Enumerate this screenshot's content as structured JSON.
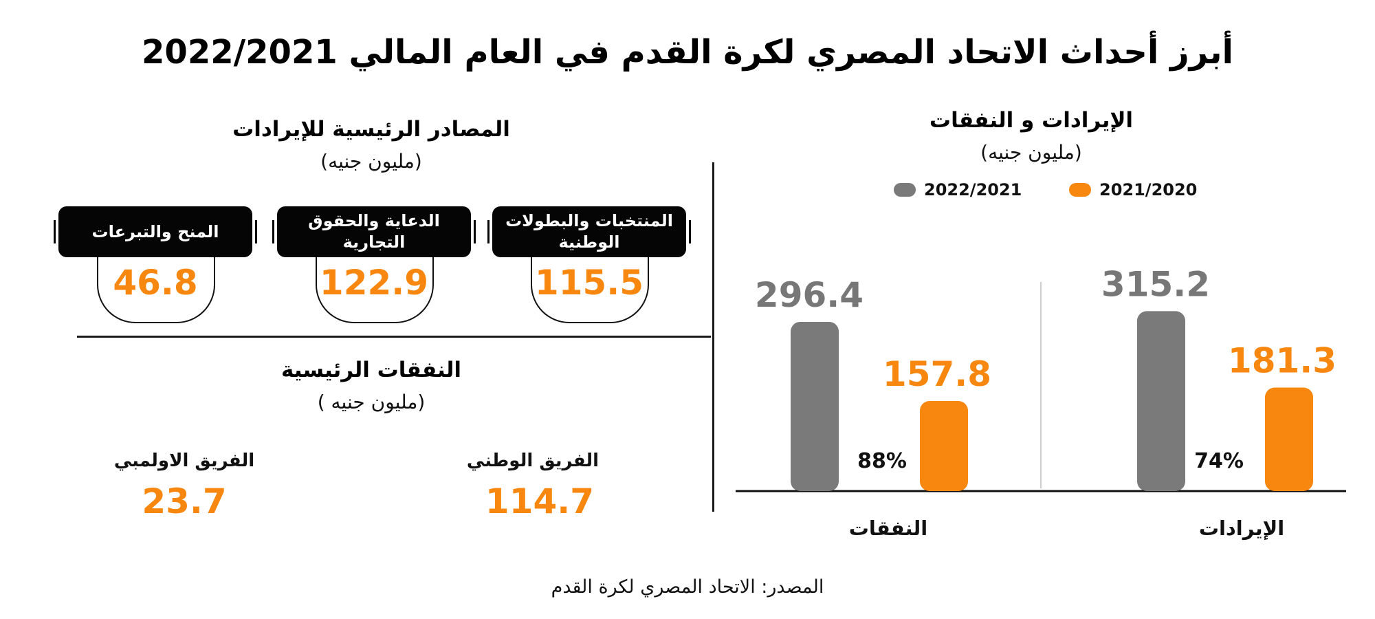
{
  "title": "أبرز أحداث الاتحاد المصري لكرة القدم في العام المالي 2022/2021",
  "revenue_sources": {
    "title": "المصادر الرئيسية للإيرادات",
    "unit": "(مليون جنيه)",
    "items": [
      {
        "label": "المنتخبات والبطولات الوطنية",
        "value": "115.5"
      },
      {
        "label": "الدعاية والحقوق التجارية",
        "value": "122.9"
      },
      {
        "label": "المنح والتبرعات",
        "value": "46.8"
      }
    ]
  },
  "main_expenses": {
    "title": "النفقات الرئيسية",
    "unit": "(مليون جنيه )",
    "items": [
      {
        "label": "الفريق الوطني",
        "value": "114.7"
      },
      {
        "label": "الفريق الاولمبي",
        "value": "23.7"
      }
    ]
  },
  "source": "المصدر: الاتحاد المصري لكرة القدم",
  "chart_data": {
    "type": "bar",
    "title": "الإيرادات و النفقات",
    "subtitle": "(مليون جنيه)",
    "categories": [
      "الإيرادات",
      "النفقات"
    ],
    "series": [
      {
        "name": "2022/2021",
        "values": [
          315.2,
          296.4
        ],
        "color": "#7a7a7a"
      },
      {
        "name": "2021/2020",
        "values": [
          181.3,
          157.8
        ],
        "color": "#f7870f"
      }
    ],
    "annotations": [
      "74%",
      "88%"
    ],
    "legend_position": "top",
    "grid": false
  }
}
